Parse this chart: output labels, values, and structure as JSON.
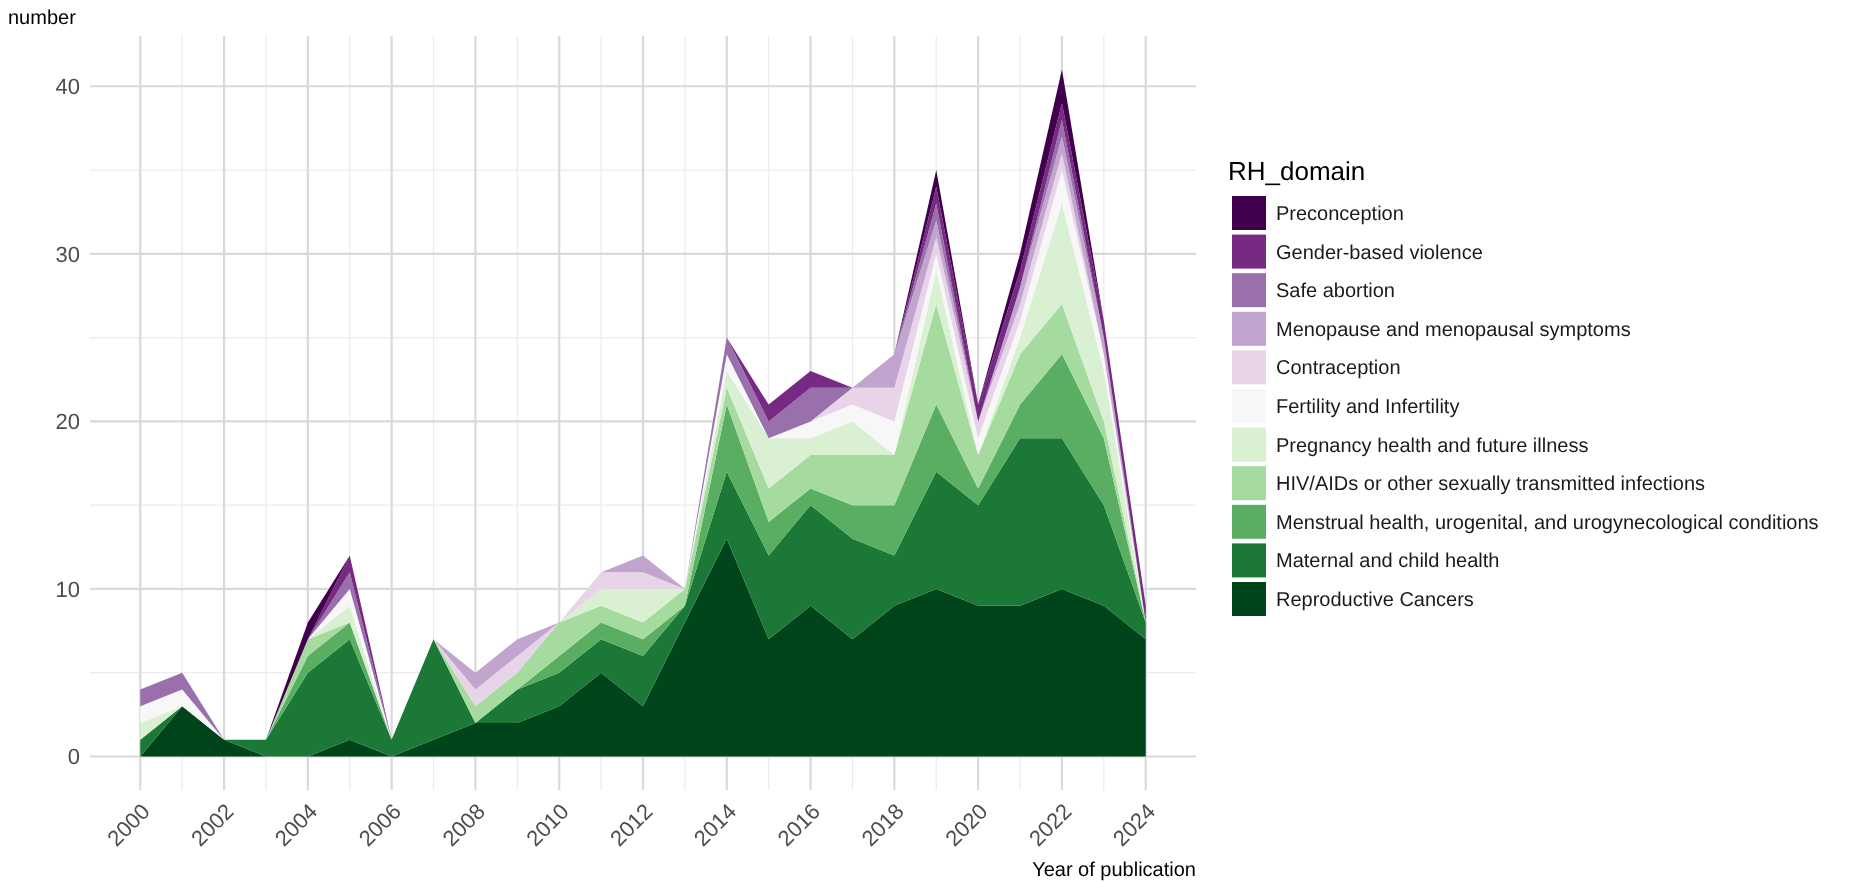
{
  "chart_data": {
    "type": "area",
    "stacked": true,
    "xlabel": "Year of publication",
    "ylabel": "number",
    "legend_title": "RH_domain",
    "legend": "right",
    "grid": true,
    "x": [
      2000,
      2001,
      2002,
      2003,
      2004,
      2005,
      2006,
      2007,
      2008,
      2009,
      2010,
      2011,
      2012,
      2013,
      2014,
      2015,
      2016,
      2017,
      2018,
      2019,
      2020,
      2021,
      2022,
      2023,
      2024
    ],
    "xlim": [
      1998.8,
      2025.2
    ],
    "xticks": [
      2000,
      2002,
      2004,
      2006,
      2008,
      2010,
      2012,
      2014,
      2016,
      2018,
      2020,
      2022,
      2024
    ],
    "ylim": [
      -2,
      43
    ],
    "yticks": [
      0,
      10,
      20,
      30,
      40
    ],
    "series": [
      {
        "name": "Reproductive Cancers",
        "color": "#00441b",
        "values": [
          0,
          3,
          1,
          0,
          0,
          1,
          0,
          1,
          2,
          2,
          3,
          5,
          3,
          8,
          13,
          7,
          9,
          7,
          9,
          10,
          9,
          9,
          10,
          9,
          7
        ]
      },
      {
        "name": "Maternal and child health",
        "color": "#1b7837",
        "values": [
          1,
          0,
          0,
          1,
          5,
          6,
          1,
          6,
          0,
          2,
          2,
          2,
          3,
          1,
          4,
          5,
          6,
          6,
          3,
          7,
          6,
          10,
          9,
          6,
          1
        ]
      },
      {
        "name": "Menstrual health, urogenital, and urogynecological conditions",
        "color": "#5aae61",
        "values": [
          0,
          0,
          0,
          0,
          1,
          1,
          0,
          0,
          0,
          0,
          1,
          1,
          1,
          0,
          4,
          2,
          1,
          2,
          3,
          4,
          1,
          2,
          5,
          4,
          0
        ]
      },
      {
        "name": "HIV/AIDs or other sexually transmitted infections",
        "color": "#a6dba0",
        "values": [
          0,
          0,
          0,
          0,
          1,
          0,
          0,
          0,
          1,
          1,
          2,
          1,
          1,
          1,
          1,
          2,
          2,
          3,
          3,
          6,
          2,
          3,
          3,
          1,
          0
        ]
      },
      {
        "name": "Pregnancy health and future illness",
        "color": "#d9f0d3",
        "values": [
          1,
          0,
          0,
          0,
          0,
          1,
          0,
          0,
          0,
          0,
          0,
          1,
          2,
          0,
          1,
          3,
          1,
          2,
          0,
          2,
          0,
          1,
          6,
          3,
          0
        ]
      },
      {
        "name": "Fertility and Infertility",
        "color": "#f7f7f7",
        "values": [
          1,
          1,
          0,
          0,
          0,
          1,
          0,
          0,
          0,
          0,
          0,
          0,
          0,
          0,
          1,
          0,
          1,
          1,
          2,
          1,
          1,
          1,
          2,
          1,
          0
        ]
      },
      {
        "name": "Contraception",
        "color": "#e7d4e8",
        "values": [
          0,
          0,
          0,
          0,
          0,
          0,
          0,
          0,
          1,
          1,
          0,
          1,
          1,
          0,
          0,
          0,
          0,
          1,
          2,
          1,
          1,
          1,
          1,
          0,
          0
        ]
      },
      {
        "name": "Menopause and menopausal symptoms",
        "color": "#c2a5cf",
        "values": [
          0,
          0,
          0,
          0,
          0,
          0,
          0,
          0,
          1,
          1,
          0,
          0,
          1,
          0,
          0,
          0,
          0,
          0,
          2,
          1,
          0,
          1,
          1,
          1,
          0
        ]
      },
      {
        "name": "Safe abortion",
        "color": "#9970ab",
        "values": [
          1,
          1,
          0,
          0,
          0,
          1,
          0,
          0,
          0,
          0,
          0,
          0,
          0,
          0,
          1,
          1,
          2,
          0,
          0,
          1,
          0,
          0,
          1,
          0,
          0
        ]
      },
      {
        "name": "Gender-based violence",
        "color": "#762a83",
        "values": [
          0,
          0,
          0,
          0,
          0,
          1,
          0,
          0,
          0,
          0,
          0,
          0,
          0,
          0,
          0,
          1,
          1,
          0,
          0,
          1,
          1,
          1,
          1,
          1,
          1
        ]
      },
      {
        "name": "Preconception",
        "color": "#40004b",
        "values": [
          0,
          0,
          0,
          0,
          1,
          0,
          0,
          0,
          0,
          0,
          0,
          0,
          0,
          0,
          0,
          0,
          0,
          0,
          0,
          1,
          0,
          1,
          2,
          0,
          0
        ]
      }
    ]
  }
}
